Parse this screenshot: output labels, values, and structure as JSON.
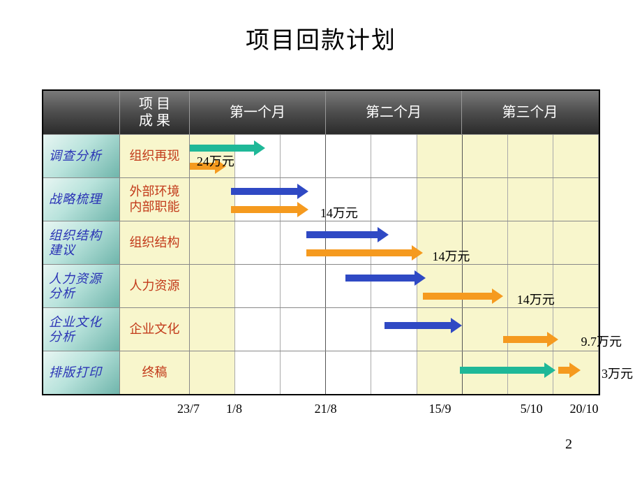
{
  "title": "项目回款计划",
  "pageNumber": "2",
  "header": {
    "taskCol": "",
    "resultCol": "项 目\n成 果",
    "months": [
      "第一个月",
      "第二个月",
      "第三个月"
    ]
  },
  "timeline": {
    "subColsPerMonth": 3,
    "stripePattern": [
      true,
      false,
      false,
      false,
      false,
      true,
      true,
      true,
      true
    ],
    "colors": {
      "teal": "#1fb898",
      "blue": "#2f49c4",
      "orange": "#f59a1f"
    }
  },
  "rows": [
    {
      "task": "调查分析",
      "result": "组织再现",
      "arrows": [
        {
          "color": "teal",
          "start": 0,
          "end": 1.65,
          "y": 14
        },
        {
          "color": "orange",
          "start": 0,
          "end": 0.8,
          "y": 40
        }
      ],
      "amount": {
        "text": "24万元",
        "x": 0.15,
        "y": 24
      }
    },
    {
      "task": "战略梳理",
      "result": "外部环境\n内部职能",
      "arrows": [
        {
          "color": "blue",
          "start": 0.9,
          "end": 2.6,
          "y": 14
        },
        {
          "color": "orange",
          "start": 0.9,
          "end": 2.6,
          "y": 40
        }
      ],
      "amount": {
        "text": "14万元",
        "x": 2.85,
        "y": 36
      }
    },
    {
      "task": "组织结构\n建议",
      "result": "组织结构",
      "arrows": [
        {
          "color": "blue",
          "start": 2.55,
          "end": 4.35,
          "y": 14
        },
        {
          "color": "orange",
          "start": 2.55,
          "end": 5.1,
          "y": 40
        }
      ],
      "amount": {
        "text": "14万元",
        "x": 5.3,
        "y": 36
      }
    },
    {
      "task": "人力资源\n分析",
      "result": "人力资源",
      "arrows": [
        {
          "color": "blue",
          "start": 3.4,
          "end": 5.15,
          "y": 14
        },
        {
          "color": "orange",
          "start": 5.1,
          "end": 6.85,
          "y": 40
        }
      ],
      "amount": {
        "text": "14万元",
        "x": 7.15,
        "y": 36
      }
    },
    {
      "task": "企业文化\n分析",
      "result": "企业文化",
      "arrows": [
        {
          "color": "blue",
          "start": 4.25,
          "end": 5.95,
          "y": 20
        },
        {
          "color": "orange",
          "start": 6.85,
          "end": 8.05,
          "y": 40
        }
      ],
      "amount": {
        "text": "9.7万元",
        "x": 8.55,
        "y": 34
      }
    },
    {
      "task": "排版打印",
      "result": "终稿",
      "arrows": [
        {
          "color": "teal",
          "start": 5.9,
          "end": 8.0,
          "y": 22
        },
        {
          "color": "orange",
          "start": 8.05,
          "end": 8.55,
          "y": 22
        }
      ],
      "amount": {
        "text": "3万元",
        "x": 9.0,
        "y": 18
      }
    }
  ],
  "dates": [
    {
      "label": "23/7",
      "col": 0
    },
    {
      "label": "1/8",
      "col": 1
    },
    {
      "label": "21/8",
      "col": 3
    },
    {
      "label": "15/9",
      "col": 5.5
    },
    {
      "label": "5/10",
      "col": 7.5
    },
    {
      "label": "20/10",
      "col": 8.65
    }
  ]
}
